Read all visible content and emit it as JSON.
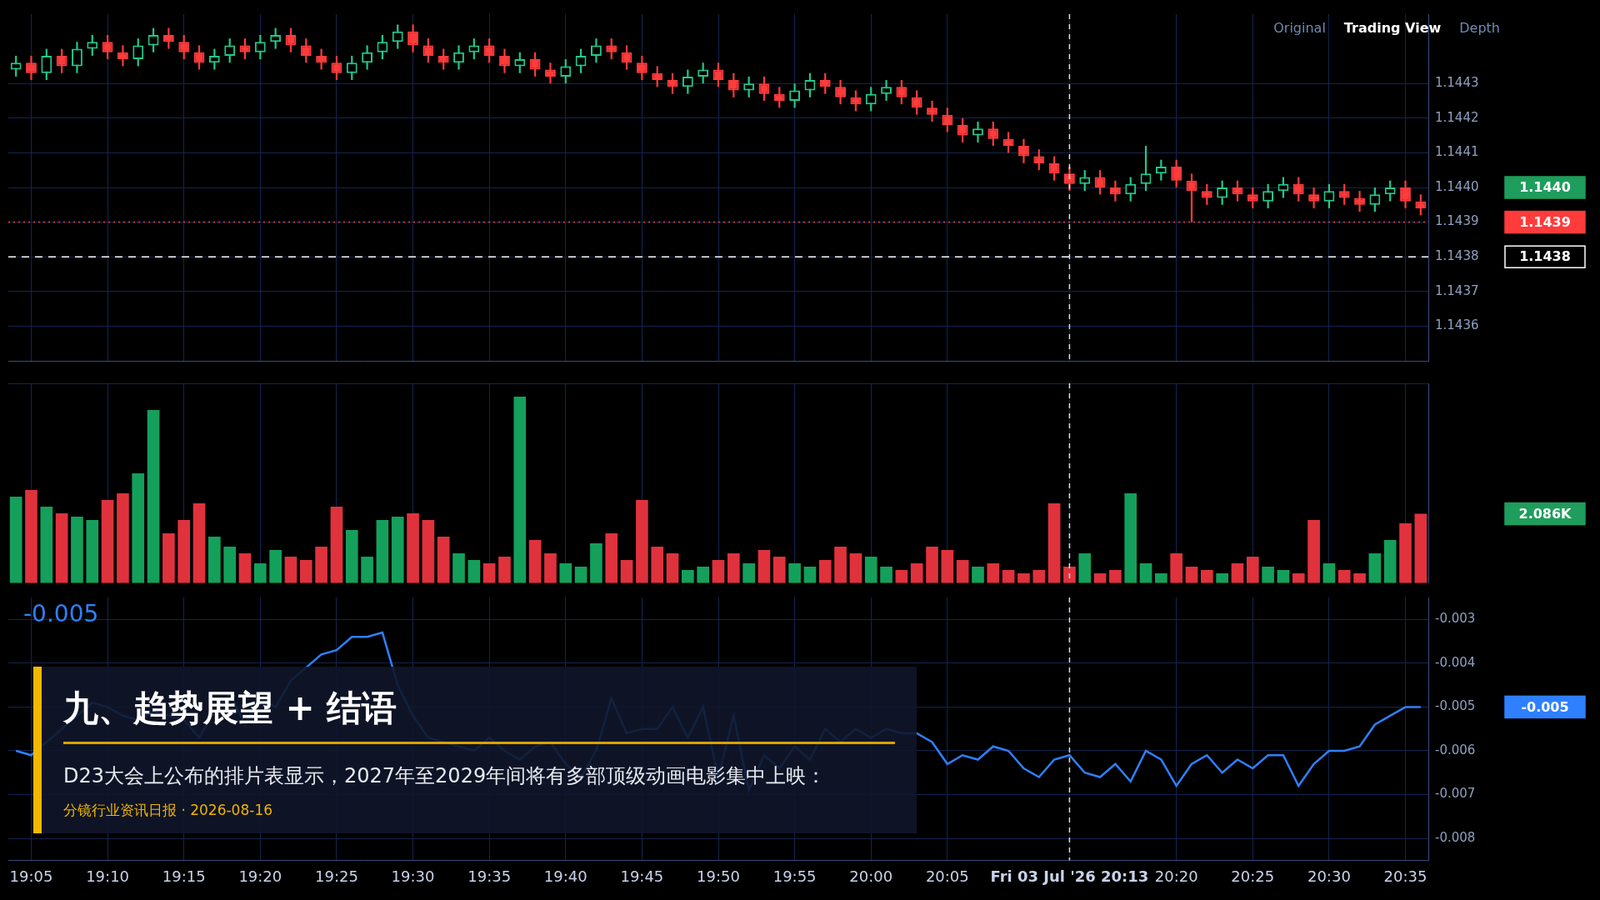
{
  "chart_data": [
    {
      "type": "candlestick",
      "categories": [
        null,
        "19:05",
        null,
        null,
        null,
        null,
        "19:10",
        null,
        null,
        null,
        null,
        "19:15",
        null,
        null,
        null,
        null,
        "19:20",
        null,
        null,
        null,
        null,
        "19:25",
        null,
        null,
        null,
        null,
        "19:30",
        null,
        null,
        null,
        null,
        "19:35",
        null,
        null,
        null,
        null,
        "19:40",
        null,
        null,
        null,
        null,
        "19:45",
        null,
        null,
        null,
        null,
        "19:50",
        null,
        null,
        null,
        null,
        "19:55",
        null,
        null,
        null,
        null,
        "20:00",
        null,
        null,
        null,
        null,
        "20:05",
        null,
        null,
        null,
        null,
        null,
        null,
        null,
        "Fri 03 Jul '26 20:13",
        null,
        null,
        null,
        null,
        null,
        null,
        "20:20",
        null,
        null,
        null,
        null,
        "20:25",
        null,
        null,
        null,
        null,
        "20:30",
        null,
        null,
        null,
        null,
        "20:35",
        null
      ],
      "open": [
        1.14434,
        1.14436,
        1.14433,
        1.14438,
        1.14435,
        1.1444,
        1.14442,
        1.14439,
        1.14437,
        1.14441,
        1.14444,
        1.14442,
        1.14439,
        1.14436,
        1.14438,
        1.14441,
        1.14439,
        1.14442,
        1.14444,
        1.14441,
        1.14438,
        1.14436,
        1.14433,
        1.14436,
        1.14439,
        1.14442,
        1.14445,
        1.14441,
        1.14438,
        1.14436,
        1.14439,
        1.14441,
        1.14438,
        1.14435,
        1.14437,
        1.14434,
        1.14432,
        1.14435,
        1.14438,
        1.14441,
        1.14439,
        1.14436,
        1.14433,
        1.14431,
        1.14429,
        1.14432,
        1.14434,
        1.14431,
        1.14428,
        1.1443,
        1.14427,
        1.14425,
        1.14428,
        1.14431,
        1.14429,
        1.14426,
        1.14424,
        1.14427,
        1.14429,
        1.14426,
        1.14423,
        1.14421,
        1.14418,
        1.14415,
        1.14417,
        1.14414,
        1.14412,
        1.14409,
        1.14407,
        1.14404,
        1.14401,
        1.14403,
        1.144,
        1.14398,
        1.14401,
        1.14404,
        1.14406,
        1.14402,
        1.14399,
        1.14397,
        1.144,
        1.14398,
        1.14396,
        1.14399,
        1.14401,
        1.14398,
        1.14396,
        1.14399,
        1.14397,
        1.14395,
        1.14398,
        1.144,
        1.14396
      ],
      "high": [
        1.14438,
        1.14438,
        1.1444,
        1.1444,
        1.14442,
        1.14444,
        1.14444,
        1.14441,
        1.14443,
        1.14446,
        1.14446,
        1.14444,
        1.14441,
        1.1444,
        1.14443,
        1.14443,
        1.14444,
        1.14446,
        1.14446,
        1.14443,
        1.1444,
        1.14438,
        1.14438,
        1.14441,
        1.14444,
        1.14447,
        1.14447,
        1.14443,
        1.1444,
        1.14441,
        1.14443,
        1.14443,
        1.1444,
        1.14439,
        1.14439,
        1.14436,
        1.14437,
        1.1444,
        1.14443,
        1.14443,
        1.14441,
        1.14438,
        1.14435,
        1.14433,
        1.14434,
        1.14436,
        1.14436,
        1.14433,
        1.14432,
        1.14432,
        1.14429,
        1.1443,
        1.14433,
        1.14433,
        1.14431,
        1.14428,
        1.14429,
        1.14431,
        1.14431,
        1.14428,
        1.14425,
        1.14423,
        1.1442,
        1.14419,
        1.14419,
        1.14416,
        1.14414,
        1.14411,
        1.14409,
        1.14406,
        1.14405,
        1.14405,
        1.14402,
        1.14403,
        1.14412,
        1.14408,
        1.14408,
        1.14404,
        1.14401,
        1.14402,
        1.14402,
        1.144,
        1.14401,
        1.14403,
        1.14403,
        1.144,
        1.14401,
        1.14401,
        1.14399,
        1.144,
        1.14402,
        1.14402,
        1.14398
      ],
      "low": [
        1.14432,
        1.14431,
        1.14431,
        1.14433,
        1.14433,
        1.14438,
        1.14437,
        1.14435,
        1.14435,
        1.14439,
        1.1444,
        1.14437,
        1.14434,
        1.14434,
        1.14436,
        1.14437,
        1.14437,
        1.1444,
        1.14439,
        1.14436,
        1.14434,
        1.14431,
        1.14431,
        1.14434,
        1.14437,
        1.1444,
        1.14439,
        1.14436,
        1.14434,
        1.14434,
        1.14437,
        1.14436,
        1.14433,
        1.14433,
        1.14432,
        1.1443,
        1.1443,
        1.14433,
        1.14436,
        1.14437,
        1.14434,
        1.14431,
        1.14429,
        1.14427,
        1.14427,
        1.1443,
        1.14429,
        1.14426,
        1.14426,
        1.14425,
        1.14423,
        1.14423,
        1.14426,
        1.14427,
        1.14424,
        1.14422,
        1.14422,
        1.14425,
        1.14424,
        1.14421,
        1.14419,
        1.14416,
        1.14413,
        1.14413,
        1.14412,
        1.1441,
        1.14407,
        1.14405,
        1.14402,
        1.14399,
        1.14399,
        1.14398,
        1.14396,
        1.14396,
        1.14399,
        1.14402,
        1.144,
        1.1439,
        1.14395,
        1.14395,
        1.14396,
        1.14394,
        1.14394,
        1.14397,
        1.14396,
        1.14394,
        1.14394,
        1.14395,
        1.14393,
        1.14393,
        1.14396,
        1.14394,
        1.14392
      ],
      "close": [
        1.14436,
        1.14433,
        1.14438,
        1.14435,
        1.1444,
        1.14442,
        1.14439,
        1.14437,
        1.14441,
        1.14444,
        1.14442,
        1.14439,
        1.14436,
        1.14438,
        1.14441,
        1.14439,
        1.14442,
        1.14444,
        1.14441,
        1.14438,
        1.14436,
        1.14433,
        1.14436,
        1.14439,
        1.14442,
        1.14445,
        1.14441,
        1.14438,
        1.14436,
        1.14439,
        1.14441,
        1.14438,
        1.14435,
        1.14437,
        1.14434,
        1.14432,
        1.14435,
        1.14438,
        1.14441,
        1.14439,
        1.14436,
        1.14433,
        1.14431,
        1.14429,
        1.14432,
        1.14434,
        1.14431,
        1.14428,
        1.1443,
        1.14427,
        1.14425,
        1.14428,
        1.14431,
        1.14429,
        1.14426,
        1.14424,
        1.14427,
        1.14429,
        1.14426,
        1.14423,
        1.14421,
        1.14418,
        1.14415,
        1.14417,
        1.14414,
        1.14412,
        1.14409,
        1.14407,
        1.14404,
        1.14401,
        1.14403,
        1.144,
        1.14398,
        1.14401,
        1.14404,
        1.14406,
        1.14402,
        1.14399,
        1.14397,
        1.144,
        1.14398,
        1.14396,
        1.14399,
        1.14401,
        1.14398,
        1.14396,
        1.14399,
        1.14397,
        1.14395,
        1.14398,
        1.144,
        1.14396,
        1.14394
      ],
      "ylim": [
        1.1435,
        1.1445
      ],
      "yticks": [
        1.1436,
        1.1437,
        1.1438,
        1.1439,
        {
          "value": 1.144,
          "label": "1.1440"
        },
        1.1441,
        1.1442,
        1.1443
      ],
      "markers": [
        {
          "value": 1.144,
          "label": "1.1440",
          "color": "#1f9d5c"
        },
        {
          "value": 1.1439,
          "label": "1.1439",
          "color": "#ff3b3b",
          "line_style": "dotted"
        },
        {
          "value": 1.1438,
          "label": "1.1438",
          "color": "#ffffff",
          "line_style": "dashed"
        }
      ],
      "grid": true,
      "tick_labels": "y"
    },
    {
      "type": "bar",
      "categories": [
        null,
        "19:05",
        null,
        null,
        null,
        null,
        "19:10",
        null,
        null,
        null,
        null,
        "19:15",
        null,
        null,
        null,
        null,
        "19:20",
        null,
        null,
        null,
        null,
        "19:25",
        null,
        null,
        null,
        null,
        "19:30",
        null,
        null,
        null,
        null,
        "19:35",
        null,
        null,
        null,
        null,
        "19:40",
        null,
        null,
        null,
        null,
        "19:45",
        null,
        null,
        null,
        null,
        "19:50",
        null,
        null,
        null,
        null,
        "19:55",
        null,
        null,
        null,
        null,
        "20:00",
        null,
        null,
        null,
        null,
        "20:05",
        null,
        null,
        null,
        null,
        null,
        null,
        null,
        "Fri 03 Jul '26 20:13",
        null,
        null,
        null,
        null,
        null,
        null,
        "20:20",
        null,
        null,
        null,
        null,
        "20:25",
        null,
        null,
        null,
        null,
        "20:30",
        null,
        null,
        null,
        null,
        "20:35",
        null
      ],
      "values": [
        2600,
        2800,
        2300,
        2100,
        2000,
        1900,
        2500,
        2700,
        3300,
        5200,
        1500,
        1900,
        2400,
        1400,
        1100,
        900,
        600,
        1000,
        800,
        700,
        1100,
        2300,
        1600,
        800,
        1900,
        2000,
        2100,
        1900,
        1400,
        900,
        700,
        600,
        800,
        5600,
        1300,
        900,
        600,
        500,
        1200,
        1500,
        700,
        2500,
        1100,
        900,
        400,
        500,
        700,
        900,
        600,
        1000,
        800,
        600,
        500,
        700,
        1100,
        900,
        800,
        500,
        400,
        600,
        1100,
        1000,
        700,
        500,
        600,
        400,
        300,
        400,
        2400,
        500,
        900,
        300,
        400,
        2700,
        600,
        300,
        900,
        500,
        400,
        300,
        600,
        800,
        500,
        400,
        300,
        1900,
        600,
        400,
        300,
        900,
        1300,
        1800,
        2086
      ],
      "ylim": [
        0,
        6000
      ],
      "markers": [
        {
          "value": 2086,
          "label": "2.086K",
          "color": "#1f9d5c"
        }
      ],
      "grid": true,
      "tick_labels": false
    },
    {
      "type": "line",
      "categories": [
        null,
        "19:05",
        null,
        null,
        null,
        null,
        "19:10",
        null,
        null,
        null,
        null,
        "19:15",
        null,
        null,
        null,
        null,
        "19:20",
        null,
        null,
        null,
        null,
        "19:25",
        null,
        null,
        null,
        null,
        "19:30",
        null,
        null,
        null,
        null,
        "19:35",
        null,
        null,
        null,
        null,
        "19:40",
        null,
        null,
        null,
        null,
        "19:45",
        null,
        null,
        null,
        null,
        "19:50",
        null,
        null,
        null,
        null,
        "19:55",
        null,
        null,
        null,
        null,
        "20:00",
        null,
        null,
        null,
        null,
        "20:05",
        null,
        null,
        null,
        null,
        null,
        null,
        null,
        "Fri 03 Jul '26 20:13",
        null,
        null,
        null,
        null,
        null,
        null,
        "20:20",
        null,
        null,
        null,
        null,
        "20:25",
        null,
        null,
        null,
        null,
        "20:30",
        null,
        null,
        null,
        null,
        "20:35",
        null
      ],
      "values": [
        -0.006,
        -0.0061,
        -0.0058,
        -0.0055,
        -0.0052,
        -0.0049,
        -0.005,
        -0.0052,
        -0.0053,
        -0.0051,
        -0.0052,
        -0.0053,
        -0.0057,
        -0.0051,
        -0.0047,
        -0.0054,
        -0.0048,
        -0.005,
        -0.0044,
        -0.0041,
        -0.0038,
        -0.0037,
        -0.0034,
        -0.0034,
        -0.0033,
        -0.0045,
        -0.0052,
        -0.0057,
        -0.0058,
        -0.0059,
        -0.006,
        -0.0057,
        -0.006,
        -0.0062,
        -0.0059,
        -0.0058,
        -0.0063,
        -0.0066,
        -0.006,
        -0.0048,
        -0.0056,
        -0.0055,
        -0.0055,
        -0.005,
        -0.0057,
        -0.005,
        -0.0066,
        -0.0052,
        -0.0069,
        -0.0061,
        -0.0064,
        -0.0059,
        -0.0062,
        -0.0055,
        -0.0058,
        -0.0055,
        -0.0057,
        -0.0055,
        -0.0056,
        -0.0056,
        -0.0058,
        -0.0063,
        -0.0061,
        -0.0062,
        -0.0059,
        -0.006,
        -0.0064,
        -0.0066,
        -0.0062,
        -0.0061,
        -0.0065,
        -0.0066,
        -0.0063,
        -0.0067,
        -0.006,
        -0.0062,
        -0.0068,
        -0.0063,
        -0.0061,
        -0.0065,
        -0.0062,
        -0.0064,
        -0.0061,
        -0.0061,
        -0.0068,
        -0.0063,
        -0.006,
        -0.006,
        -0.0059,
        -0.0054,
        -0.0052,
        -0.005,
        -0.005
      ],
      "color": "#2f80ff",
      "ylim": [
        -0.0085,
        -0.0025
      ],
      "yticks": [
        -0.003,
        -0.004,
        -0.005,
        -0.006,
        -0.007,
        -0.008
      ],
      "annotations": [
        "-0.005"
      ],
      "markers": [
        {
          "value": -0.005,
          "label": "-0.005",
          "color": "#2f80ff"
        }
      ],
      "crosshair": "Fri 03 Jul '26 20:13",
      "grid": true
    }
  ],
  "toolbar": [
    "Original",
    "Trading View",
    "Depth"
  ],
  "caption": {
    "title": "九、趋势展望 + 结语",
    "body": "D23大会上公布的排片表显示，2027年至2029年间将有多部顶级动画电影集中上映：",
    "source": "分镜行业资讯日报 · 2026-08-16"
  }
}
